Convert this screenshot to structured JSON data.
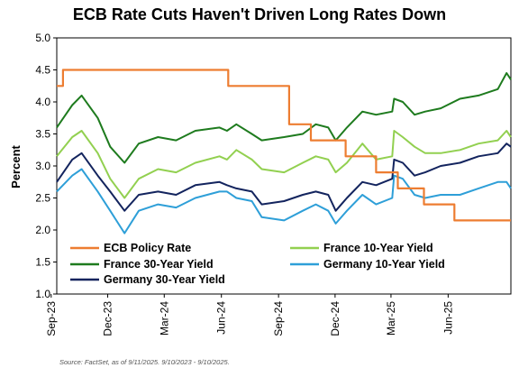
{
  "chart_data": {
    "type": "line",
    "title": "ECB Rate Cuts Haven't Driven Long Rates Down",
    "ylabel": "Percent",
    "xlabel": "",
    "ylim": [
      1.0,
      5.0
    ],
    "yticks": [
      "1.0",
      "1.5",
      "2.0",
      "2.5",
      "3.0",
      "3.5",
      "4.0",
      "4.5",
      "5.0"
    ],
    "xticks": [
      "Sep-23",
      "Dec-23",
      "Mar-24",
      "Jun-24",
      "Sep-24",
      "Dec-24",
      "Mar-25",
      "Jun-25"
    ],
    "x_range": [
      "2023-09-10",
      "2025-09-10"
    ],
    "grid": false,
    "legend": "bottom-left",
    "source": "Source: FactSet, as of 9/11/2025. 9/10/2023 - 9/10/2025.",
    "series": [
      {
        "name": "ECB Policy Rate",
        "color": "#ED7D31",
        "step": true,
        "x": [
          "2023-09-10",
          "2023-09-20",
          "2024-06-12",
          "2024-09-18",
          "2024-10-23",
          "2024-12-18",
          "2025-02-05",
          "2025-03-12",
          "2025-04-23",
          "2025-06-11",
          "2025-09-10"
        ],
        "values": [
          4.25,
          4.5,
          4.25,
          3.65,
          3.4,
          3.15,
          2.9,
          2.65,
          2.4,
          2.15,
          2.15
        ]
      },
      {
        "name": "France 10-Year Yield",
        "color": "#92D050",
        "x": [
          "2023-09-10",
          "2023-10-05",
          "2023-10-20",
          "2023-11-15",
          "2023-12-05",
          "2023-12-28",
          "2024-01-20",
          "2024-02-20",
          "2024-03-20",
          "2024-04-20",
          "2024-05-29",
          "2024-06-10",
          "2024-06-25",
          "2024-07-20",
          "2024-08-05",
          "2024-09-10",
          "2024-10-10",
          "2024-10-31",
          "2024-11-20",
          "2024-12-02",
          "2024-12-20",
          "2025-01-14",
          "2025-02-05",
          "2025-03-03",
          "2025-03-06",
          "2025-03-20",
          "2025-04-08",
          "2025-04-25",
          "2025-05-20",
          "2025-06-20",
          "2025-07-20",
          "2025-08-20",
          "2025-09-03",
          "2025-09-10"
        ],
        "values": [
          3.15,
          3.45,
          3.55,
          3.2,
          2.8,
          2.5,
          2.8,
          2.95,
          2.9,
          3.05,
          3.15,
          3.1,
          3.25,
          3.1,
          2.95,
          2.9,
          3.05,
          3.15,
          3.1,
          2.9,
          3.05,
          3.35,
          3.1,
          3.15,
          3.55,
          3.45,
          3.3,
          3.2,
          3.2,
          3.25,
          3.35,
          3.4,
          3.55,
          3.45
        ]
      },
      {
        "name": "France 30-Year Yield",
        "color": "#1E7B1E",
        "x": [
          "2023-09-10",
          "2023-10-05",
          "2023-10-20",
          "2023-11-15",
          "2023-12-05",
          "2023-12-28",
          "2024-01-20",
          "2024-02-20",
          "2024-03-20",
          "2024-04-20",
          "2024-05-29",
          "2024-06-10",
          "2024-06-25",
          "2024-07-20",
          "2024-08-05",
          "2024-09-10",
          "2024-10-10",
          "2024-10-31",
          "2024-11-20",
          "2024-12-02",
          "2024-12-20",
          "2025-01-14",
          "2025-02-05",
          "2025-03-03",
          "2025-03-06",
          "2025-03-20",
          "2025-04-08",
          "2025-04-25",
          "2025-05-20",
          "2025-06-20",
          "2025-07-20",
          "2025-08-20",
          "2025-09-03",
          "2025-09-10"
        ],
        "values": [
          3.6,
          3.95,
          4.1,
          3.75,
          3.3,
          3.05,
          3.35,
          3.45,
          3.4,
          3.55,
          3.6,
          3.55,
          3.65,
          3.5,
          3.4,
          3.45,
          3.5,
          3.65,
          3.6,
          3.4,
          3.6,
          3.85,
          3.8,
          3.85,
          4.05,
          4.0,
          3.8,
          3.85,
          3.9,
          4.05,
          4.1,
          4.2,
          4.45,
          4.35
        ]
      },
      {
        "name": "Germany 10-Year Yield",
        "color": "#2E9FD8",
        "x": [
          "2023-09-10",
          "2023-10-05",
          "2023-10-20",
          "2023-11-15",
          "2023-12-05",
          "2023-12-28",
          "2024-01-20",
          "2024-02-20",
          "2024-03-20",
          "2024-04-20",
          "2024-05-29",
          "2024-06-10",
          "2024-06-25",
          "2024-07-20",
          "2024-08-05",
          "2024-09-10",
          "2024-10-10",
          "2024-10-31",
          "2024-11-20",
          "2024-12-02",
          "2024-12-20",
          "2025-01-14",
          "2025-02-05",
          "2025-03-03",
          "2025-03-06",
          "2025-03-20",
          "2025-04-08",
          "2025-04-25",
          "2025-05-20",
          "2025-06-20",
          "2025-07-20",
          "2025-08-20",
          "2025-09-03",
          "2025-09-10"
        ],
        "values": [
          2.6,
          2.85,
          2.95,
          2.6,
          2.3,
          1.95,
          2.3,
          2.4,
          2.35,
          2.5,
          2.6,
          2.6,
          2.5,
          2.45,
          2.2,
          2.15,
          2.3,
          2.4,
          2.3,
          2.1,
          2.3,
          2.55,
          2.4,
          2.5,
          2.85,
          2.8,
          2.55,
          2.5,
          2.55,
          2.55,
          2.65,
          2.75,
          2.75,
          2.65
        ]
      },
      {
        "name": "Germany 30-Year Yield",
        "color": "#13245E",
        "x": [
          "2023-09-10",
          "2023-10-05",
          "2023-10-20",
          "2023-11-15",
          "2023-12-05",
          "2023-12-28",
          "2024-01-20",
          "2024-02-20",
          "2024-03-20",
          "2024-04-20",
          "2024-05-29",
          "2024-06-10",
          "2024-06-25",
          "2024-07-20",
          "2024-08-05",
          "2024-09-10",
          "2024-10-10",
          "2024-10-31",
          "2024-11-20",
          "2024-12-02",
          "2024-12-20",
          "2025-01-14",
          "2025-02-05",
          "2025-03-03",
          "2025-03-06",
          "2025-03-20",
          "2025-04-08",
          "2025-04-25",
          "2025-05-20",
          "2025-06-20",
          "2025-07-20",
          "2025-08-20",
          "2025-09-03",
          "2025-09-10"
        ],
        "values": [
          2.75,
          3.1,
          3.2,
          2.85,
          2.6,
          2.3,
          2.55,
          2.6,
          2.55,
          2.7,
          2.75,
          2.7,
          2.65,
          2.6,
          2.4,
          2.45,
          2.55,
          2.6,
          2.55,
          2.3,
          2.5,
          2.75,
          2.7,
          2.8,
          3.1,
          3.05,
          2.85,
          2.9,
          3.0,
          3.05,
          3.15,
          3.2,
          3.35,
          3.3
        ]
      }
    ]
  }
}
